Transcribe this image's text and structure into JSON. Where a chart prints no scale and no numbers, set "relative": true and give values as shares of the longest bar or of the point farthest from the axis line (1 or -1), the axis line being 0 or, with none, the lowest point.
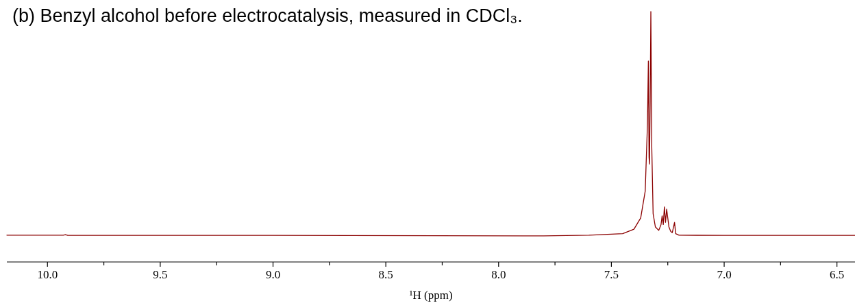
{
  "chart_data": {
    "type": "line",
    "title": "(b) Benzyl alcohol before electrocatalysis, measured in CDCl₃.",
    "xlabel": "¹H (ppm)",
    "relative": true,
    "xlim": [
      10.18,
      6.42
    ],
    "xticks": [
      {
        "value": 10,
        "label": "10.0"
      },
      {
        "value": 9.75,
        "label": null
      },
      {
        "value": 9.5,
        "label": "9.5"
      },
      {
        "value": 9.25,
        "label": null
      },
      {
        "value": 9,
        "label": "9.0"
      },
      {
        "value": 8.75,
        "label": null
      },
      {
        "value": 8.5,
        "label": "8.5"
      },
      {
        "value": 8.25,
        "label": null
      },
      {
        "value": 8,
        "label": "8.0"
      },
      {
        "value": 7.75,
        "label": null
      },
      {
        "value": 7.5,
        "label": "7.5"
      },
      {
        "value": 7.25,
        "label": null
      },
      {
        "value": 7,
        "label": "7.0"
      },
      {
        "value": 6.75,
        "label": null
      },
      {
        "value": 6.5,
        "label": "6.5"
      }
    ],
    "series": [
      {
        "color": "#8b0000",
        "x": [
          10.18,
          9.93,
          9.92,
          9.91,
          9.0,
          7.8,
          7.6,
          7.45,
          7.4,
          7.37,
          7.35,
          7.34,
          7.336,
          7.333,
          7.331,
          7.328,
          7.325,
          7.321,
          7.315,
          7.305,
          7.29,
          7.28,
          7.275,
          7.27,
          7.265,
          7.26,
          7.255,
          7.248,
          7.245,
          7.237,
          7.23,
          7.22,
          7.215,
          7.2,
          7.0,
          6.42
        ],
        "values": [
          0.107,
          0.107,
          0.109,
          0.106,
          0.106,
          0.104,
          0.107,
          0.113,
          0.131,
          0.176,
          0.283,
          0.552,
          0.803,
          0.418,
          0.391,
          0.641,
          1,
          0.462,
          0.193,
          0.14,
          0.126,
          0.149,
          0.184,
          0.149,
          0.22,
          0.158,
          0.211,
          0.162,
          0.14,
          0.122,
          0.117,
          0.158,
          0.113,
          0.107,
          0.106,
          0.106
        ]
      }
    ]
  }
}
